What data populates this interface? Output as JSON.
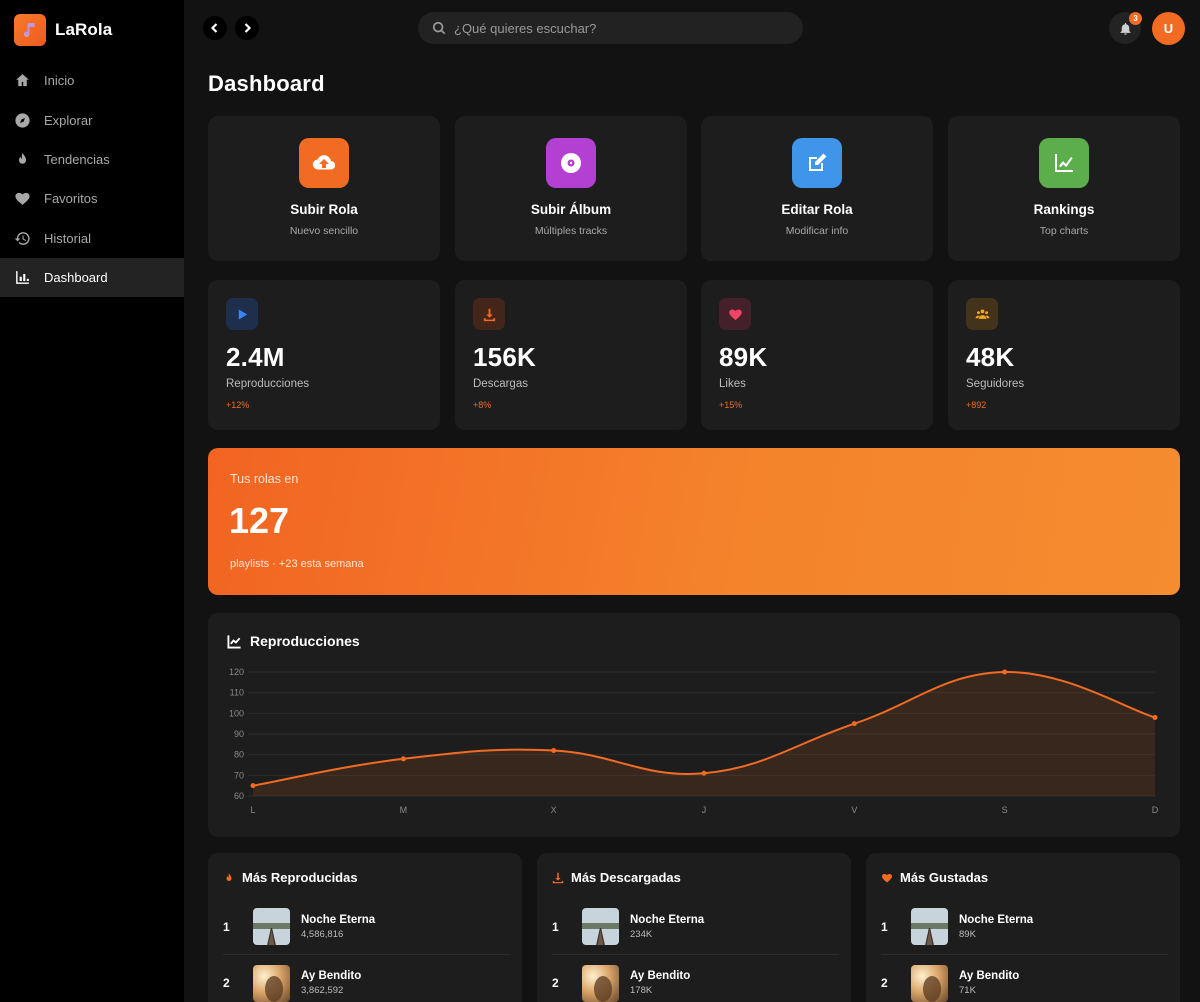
{
  "brand": {
    "name": "LaRola",
    "logo_icon": "music-note-icon",
    "accent": "#f26b22"
  },
  "nav": {
    "items": [
      {
        "label": "Inicio",
        "icon": "home-icon",
        "active": false
      },
      {
        "label": "Explorar",
        "icon": "compass-icon",
        "active": false
      },
      {
        "label": "Tendencias",
        "icon": "fire-icon",
        "active": false
      },
      {
        "label": "Favoritos",
        "icon": "heart-icon",
        "active": false
      },
      {
        "label": "Historial",
        "icon": "history-icon",
        "active": false
      },
      {
        "label": "Dashboard",
        "icon": "chart-bar-icon",
        "active": true
      }
    ]
  },
  "topbar": {
    "search_placeholder": "¿Qué quieres escuchar?",
    "notifications_count": "3",
    "avatar_initial": "U"
  },
  "page": {
    "title": "Dashboard"
  },
  "actions": [
    {
      "title": "Subir Rola",
      "subtitle": "Nuevo sencillo",
      "icon": "cloud-upload-icon",
      "color": "#f26b22"
    },
    {
      "title": "Subir Álbum",
      "subtitle": "Múltiples tracks",
      "icon": "disc-icon",
      "color": "#b43fd3"
    },
    {
      "title": "Editar Rola",
      "subtitle": "Modificar info",
      "icon": "edit-icon",
      "color": "#3f95ea"
    },
    {
      "title": "Rankings",
      "subtitle": "Top charts",
      "icon": "line-chart-icon",
      "color": "#5bae4b"
    }
  ],
  "stats": [
    {
      "value": "2.4M",
      "label": "Reproducciones",
      "delta": "+12%",
      "icon": "play-icon",
      "color": "#3b82f6"
    },
    {
      "value": "156K",
      "label": "Descargas",
      "delta": "+8%",
      "icon": "download-icon",
      "color": "#f26b22"
    },
    {
      "value": "89K",
      "label": "Likes",
      "delta": "+15%",
      "icon": "heart-icon",
      "color": "#ef4462"
    },
    {
      "value": "48K",
      "label": "Seguidores",
      "delta": "+892",
      "icon": "users-icon",
      "color": "#f5a623"
    }
  ],
  "banner": {
    "kicker": "Tus rolas en",
    "value": "127",
    "subtitle": "playlists · +23 esta semana"
  },
  "chart": {
    "title": "Reproducciones"
  },
  "chart_data": {
    "type": "area",
    "title": "Reproducciones",
    "categories": [
      "L",
      "M",
      "X",
      "J",
      "V",
      "S",
      "D"
    ],
    "values": [
      65,
      78,
      82,
      71,
      95,
      120,
      98
    ],
    "yticks": [
      60,
      70,
      80,
      90,
      100,
      110,
      120
    ],
    "ylim": [
      60,
      120
    ],
    "color": "#f26b22",
    "grid": true,
    "xlabel": "",
    "ylabel": ""
  },
  "lists": [
    {
      "title": "Más Reproducidas",
      "icon": "fire-icon",
      "items": [
        {
          "rank": "1",
          "name": "Noche Eterna",
          "meta": "4,586,816"
        },
        {
          "rank": "2",
          "name": "Ay Bendito",
          "meta": "3,862,592"
        }
      ]
    },
    {
      "title": "Más Descargadas",
      "icon": "download-icon",
      "items": [
        {
          "rank": "1",
          "name": "Noche Eterna",
          "meta": "234K"
        },
        {
          "rank": "2",
          "name": "Ay Bendito",
          "meta": "178K"
        }
      ]
    },
    {
      "title": "Más Gustadas",
      "icon": "heart-icon",
      "items": [
        {
          "rank": "1",
          "name": "Noche Eterna",
          "meta": "89K"
        },
        {
          "rank": "2",
          "name": "Ay Bendito",
          "meta": "71K"
        }
      ]
    }
  ]
}
